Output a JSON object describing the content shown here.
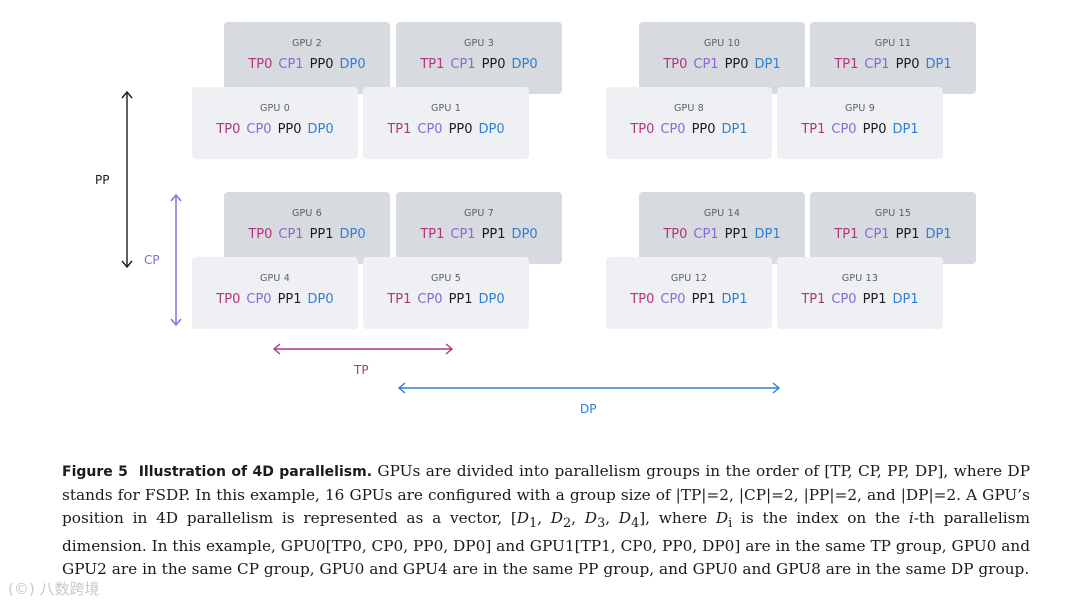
{
  "gpus": [
    {
      "id": "gpu2",
      "name": "GPU 2",
      "tags": [
        "TP0",
        "CP1",
        "PP0",
        "DP0"
      ]
    },
    {
      "id": "gpu3",
      "name": "GPU 3",
      "tags": [
        "TP1",
        "CP1",
        "PP0",
        "DP0"
      ]
    },
    {
      "id": "gpu10",
      "name": "GPU 10",
      "tags": [
        "TP0",
        "CP1",
        "PP0",
        "DP1"
      ]
    },
    {
      "id": "gpu11",
      "name": "GPU 11",
      "tags": [
        "TP1",
        "CP1",
        "PP0",
        "DP1"
      ]
    },
    {
      "id": "gpu0",
      "name": "GPU 0",
      "tags": [
        "TP0",
        "CP0",
        "PP0",
        "DP0"
      ]
    },
    {
      "id": "gpu1",
      "name": "GPU 1",
      "tags": [
        "TP1",
        "CP0",
        "PP0",
        "DP0"
      ]
    },
    {
      "id": "gpu8",
      "name": "GPU 8",
      "tags": [
        "TP0",
        "CP0",
        "PP0",
        "DP1"
      ]
    },
    {
      "id": "gpu9",
      "name": "GPU 9",
      "tags": [
        "TP1",
        "CP0",
        "PP0",
        "DP1"
      ]
    },
    {
      "id": "gpu6",
      "name": "GPU 6",
      "tags": [
        "TP0",
        "CP1",
        "PP1",
        "DP0"
      ]
    },
    {
      "id": "gpu7",
      "name": "GPU 7",
      "tags": [
        "TP1",
        "CP1",
        "PP1",
        "DP0"
      ]
    },
    {
      "id": "gpu14",
      "name": "GPU 14",
      "tags": [
        "TP0",
        "CP1",
        "PP1",
        "DP1"
      ]
    },
    {
      "id": "gpu15",
      "name": "GPU 15",
      "tags": [
        "TP1",
        "CP1",
        "PP1",
        "DP1"
      ]
    },
    {
      "id": "gpu4",
      "name": "GPU 4",
      "tags": [
        "TP0",
        "CP0",
        "PP1",
        "DP0"
      ]
    },
    {
      "id": "gpu5",
      "name": "GPU 5",
      "tags": [
        "TP1",
        "CP0",
        "PP1",
        "DP0"
      ]
    },
    {
      "id": "gpu12",
      "name": "GPU 12",
      "tags": [
        "TP0",
        "CP0",
        "PP1",
        "DP1"
      ]
    },
    {
      "id": "gpu13",
      "name": "GPU 13",
      "tags": [
        "TP1",
        "CP0",
        "PP1",
        "DP1"
      ]
    }
  ],
  "axes": {
    "pp": "PP",
    "cp": "CP",
    "tp": "TP",
    "dp": "DP"
  },
  "colors": {
    "tp": "#b1357e",
    "cp": "#8a68d6",
    "pp": "#1c1c1c",
    "dp": "#2f7fd6"
  },
  "caption": {
    "figure_label": "Figure 5",
    "figure_title": "Illustration of 4D parallelism.",
    "p1": "GPUs are divided into parallelism groups in the order of [TP, CP, PP, DP], where DP stands for FSDP. In this example, 16 GPUs are configured with a group size of |TP|=2, |CP|=2, |PP|=2, and |DP|=2. A GPU’s position in 4D parallelism is represented as a vector, [",
    "d1": "D",
    "s1": "1",
    "sep1": ", ",
    "d2": "D",
    "s2": "2",
    "sep2": ", ",
    "d3": "D",
    "s3": "3",
    "sep3": ", ",
    "d4": "D",
    "s4": "4",
    "p2": "], where ",
    "di": "D",
    "si": "i",
    "p3": " is the index on the ",
    "ith": "i",
    "p4": "-th parallelism dimension. In this example, GPU0[TP0, CP0, PP0, DP0] and GPU1[TP1, CP0, PP0, DP0] are in the same TP group, GPU0 and GPU2 are in the same CP group, GPU0 and GPU4 are in the same PP group, and GPU0 and GPU8 are in the same DP group."
  },
  "watermark": "(©) 八数跨境"
}
